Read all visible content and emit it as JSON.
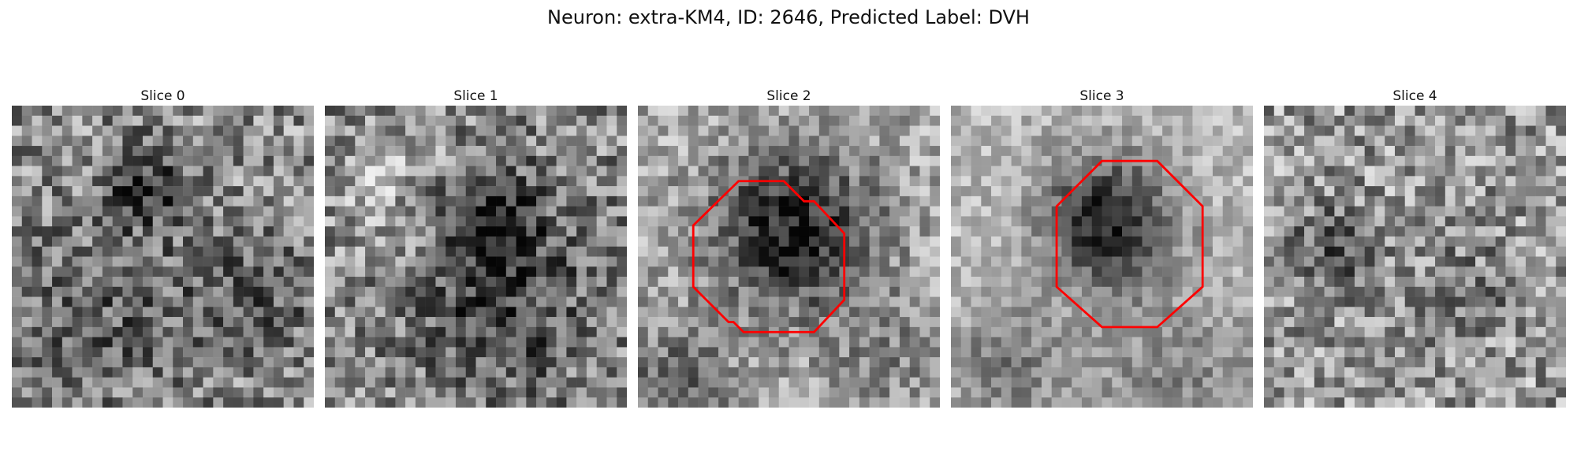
{
  "figure": {
    "title": "Neuron: extra-KM4, ID: 2646, Predicted Label: DVH"
  },
  "colors": {
    "background": "#ffffff",
    "outline": "#ff0000"
  },
  "panels": [
    {
      "title": "Slice 0",
      "has_outline": false
    },
    {
      "title": "Slice 1",
      "has_outline": false
    },
    {
      "title": "Slice 2",
      "has_outline": true
    },
    {
      "title": "Slice 3",
      "has_outline": true
    },
    {
      "title": "Slice 4",
      "has_outline": false
    }
  ]
}
